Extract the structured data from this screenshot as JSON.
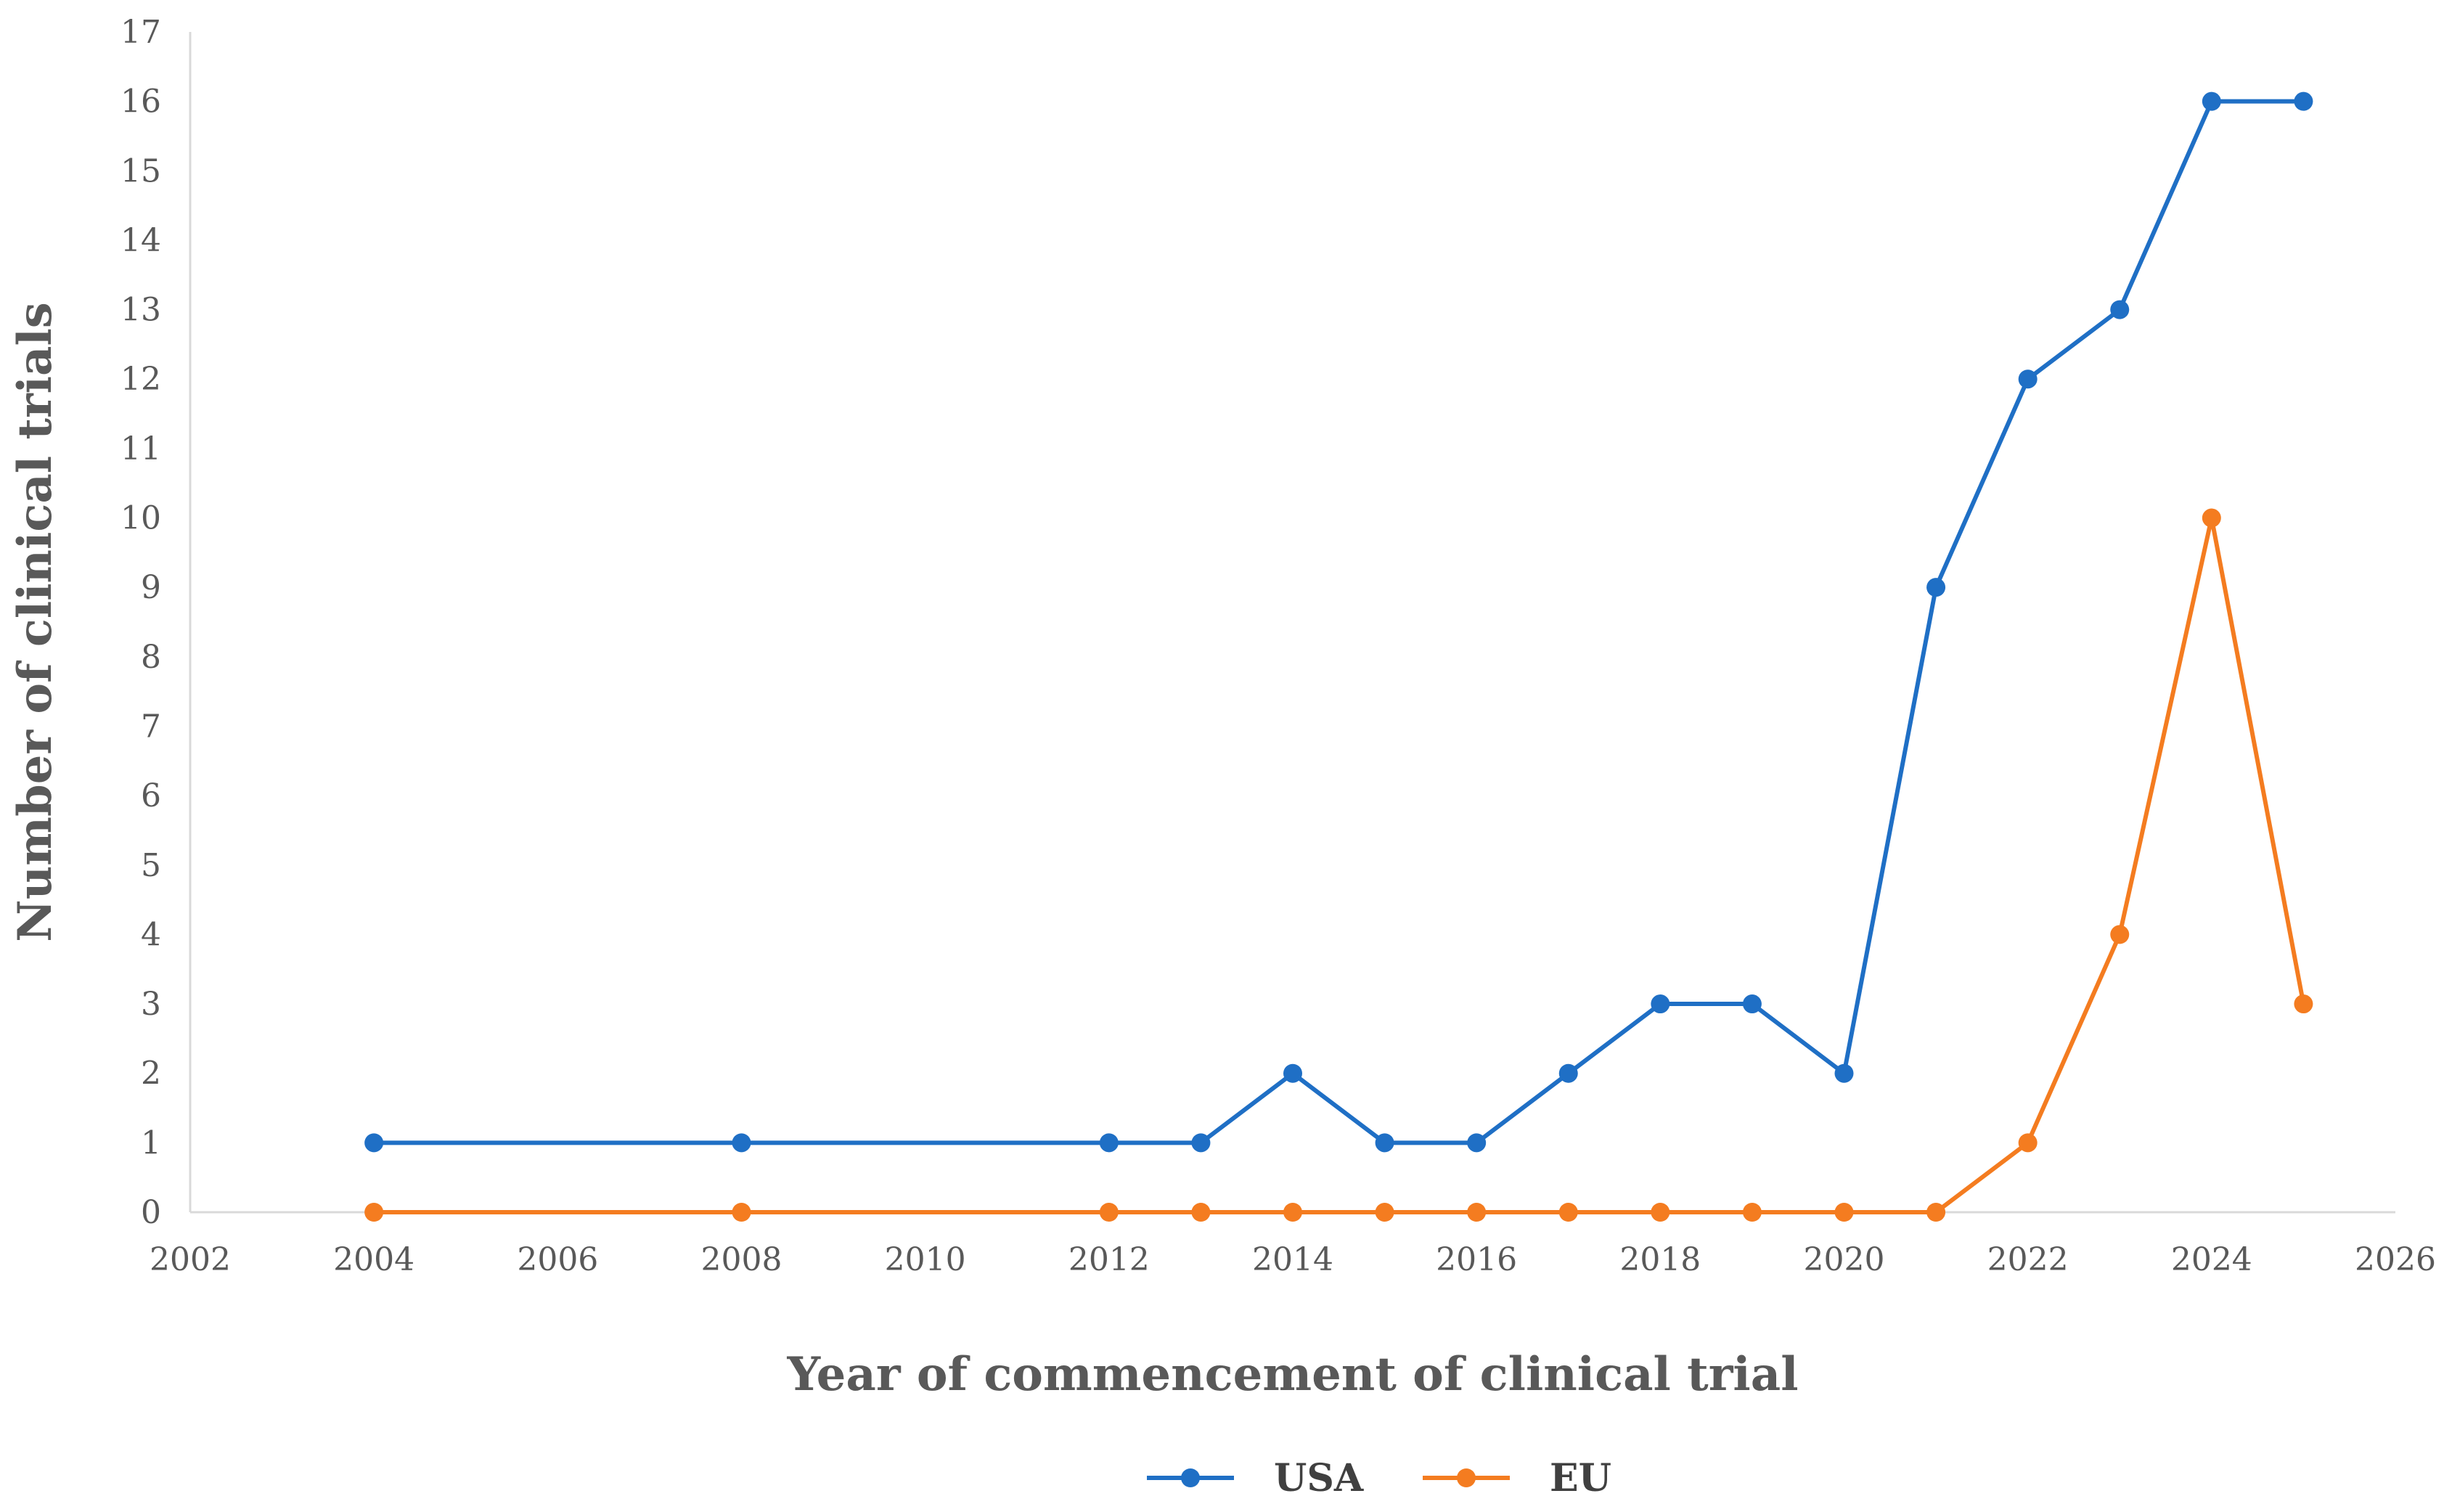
{
  "chart_data": {
    "type": "line",
    "xlabel": "Year of commencement of clinical trial",
    "ylabel": "Number of clinical trials",
    "xlim": [
      2002,
      2026
    ],
    "ylim": [
      0,
      17
    ],
    "x_ticks": [
      2002,
      2004,
      2006,
      2008,
      2010,
      2012,
      2014,
      2016,
      2018,
      2020,
      2022,
      2024,
      2026
    ],
    "y_ticks": [
      0,
      1,
      2,
      3,
      4,
      5,
      6,
      7,
      8,
      9,
      10,
      11,
      12,
      13,
      14,
      15,
      16,
      17
    ],
    "grid": false,
    "legend_position": "bottom",
    "x": [
      2004,
      2008,
      2012,
      2013,
      2014,
      2015,
      2016,
      2017,
      2018,
      2019,
      2020,
      2021,
      2022,
      2023,
      2024,
      2025
    ],
    "series": [
      {
        "name": "USA",
        "color": "#1f6fc5",
        "values": [
          1,
          1,
          1,
          1,
          2,
          1,
          1,
          2,
          3,
          3,
          2,
          9,
          12,
          13,
          16,
          16
        ]
      },
      {
        "name": "EU",
        "color": "#f47c20",
        "values": [
          0,
          0,
          0,
          0,
          0,
          0,
          0,
          0,
          0,
          0,
          0,
          0,
          1,
          4,
          10,
          3
        ]
      }
    ]
  }
}
